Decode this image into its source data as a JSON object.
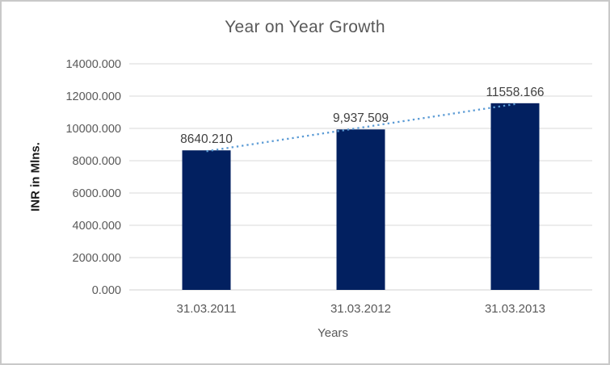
{
  "chart_data": {
    "type": "bar",
    "title": "Year on Year Growth",
    "xlabel": "Years",
    "ylabel": "INR in Mlns.",
    "categories": [
      "31.03.2011",
      "31.03.2012",
      "31.03.2013"
    ],
    "values": [
      8640.21,
      9937.509,
      11558.166
    ],
    "data_labels": [
      "8640.210",
      "9,937.509",
      "11558.166"
    ],
    "ylim": [
      0,
      14000
    ],
    "ytick_step": 2000,
    "ytick_labels": [
      "0.000",
      "2000.000",
      "4000.000",
      "6000.000",
      "8000.000",
      "10000.000",
      "12000.000",
      "14000.000"
    ],
    "grid": true,
    "legend": "none",
    "trendline": {
      "type": "linear",
      "style": "dotted"
    },
    "colors": {
      "bar": "#022060",
      "trendline": "#5B9BD5",
      "gridline": "#D9D9D9",
      "axis_line": "#D2D2D2",
      "title_text": "#595959",
      "tick_text": "#595959",
      "data_label_text": "#404040"
    }
  }
}
